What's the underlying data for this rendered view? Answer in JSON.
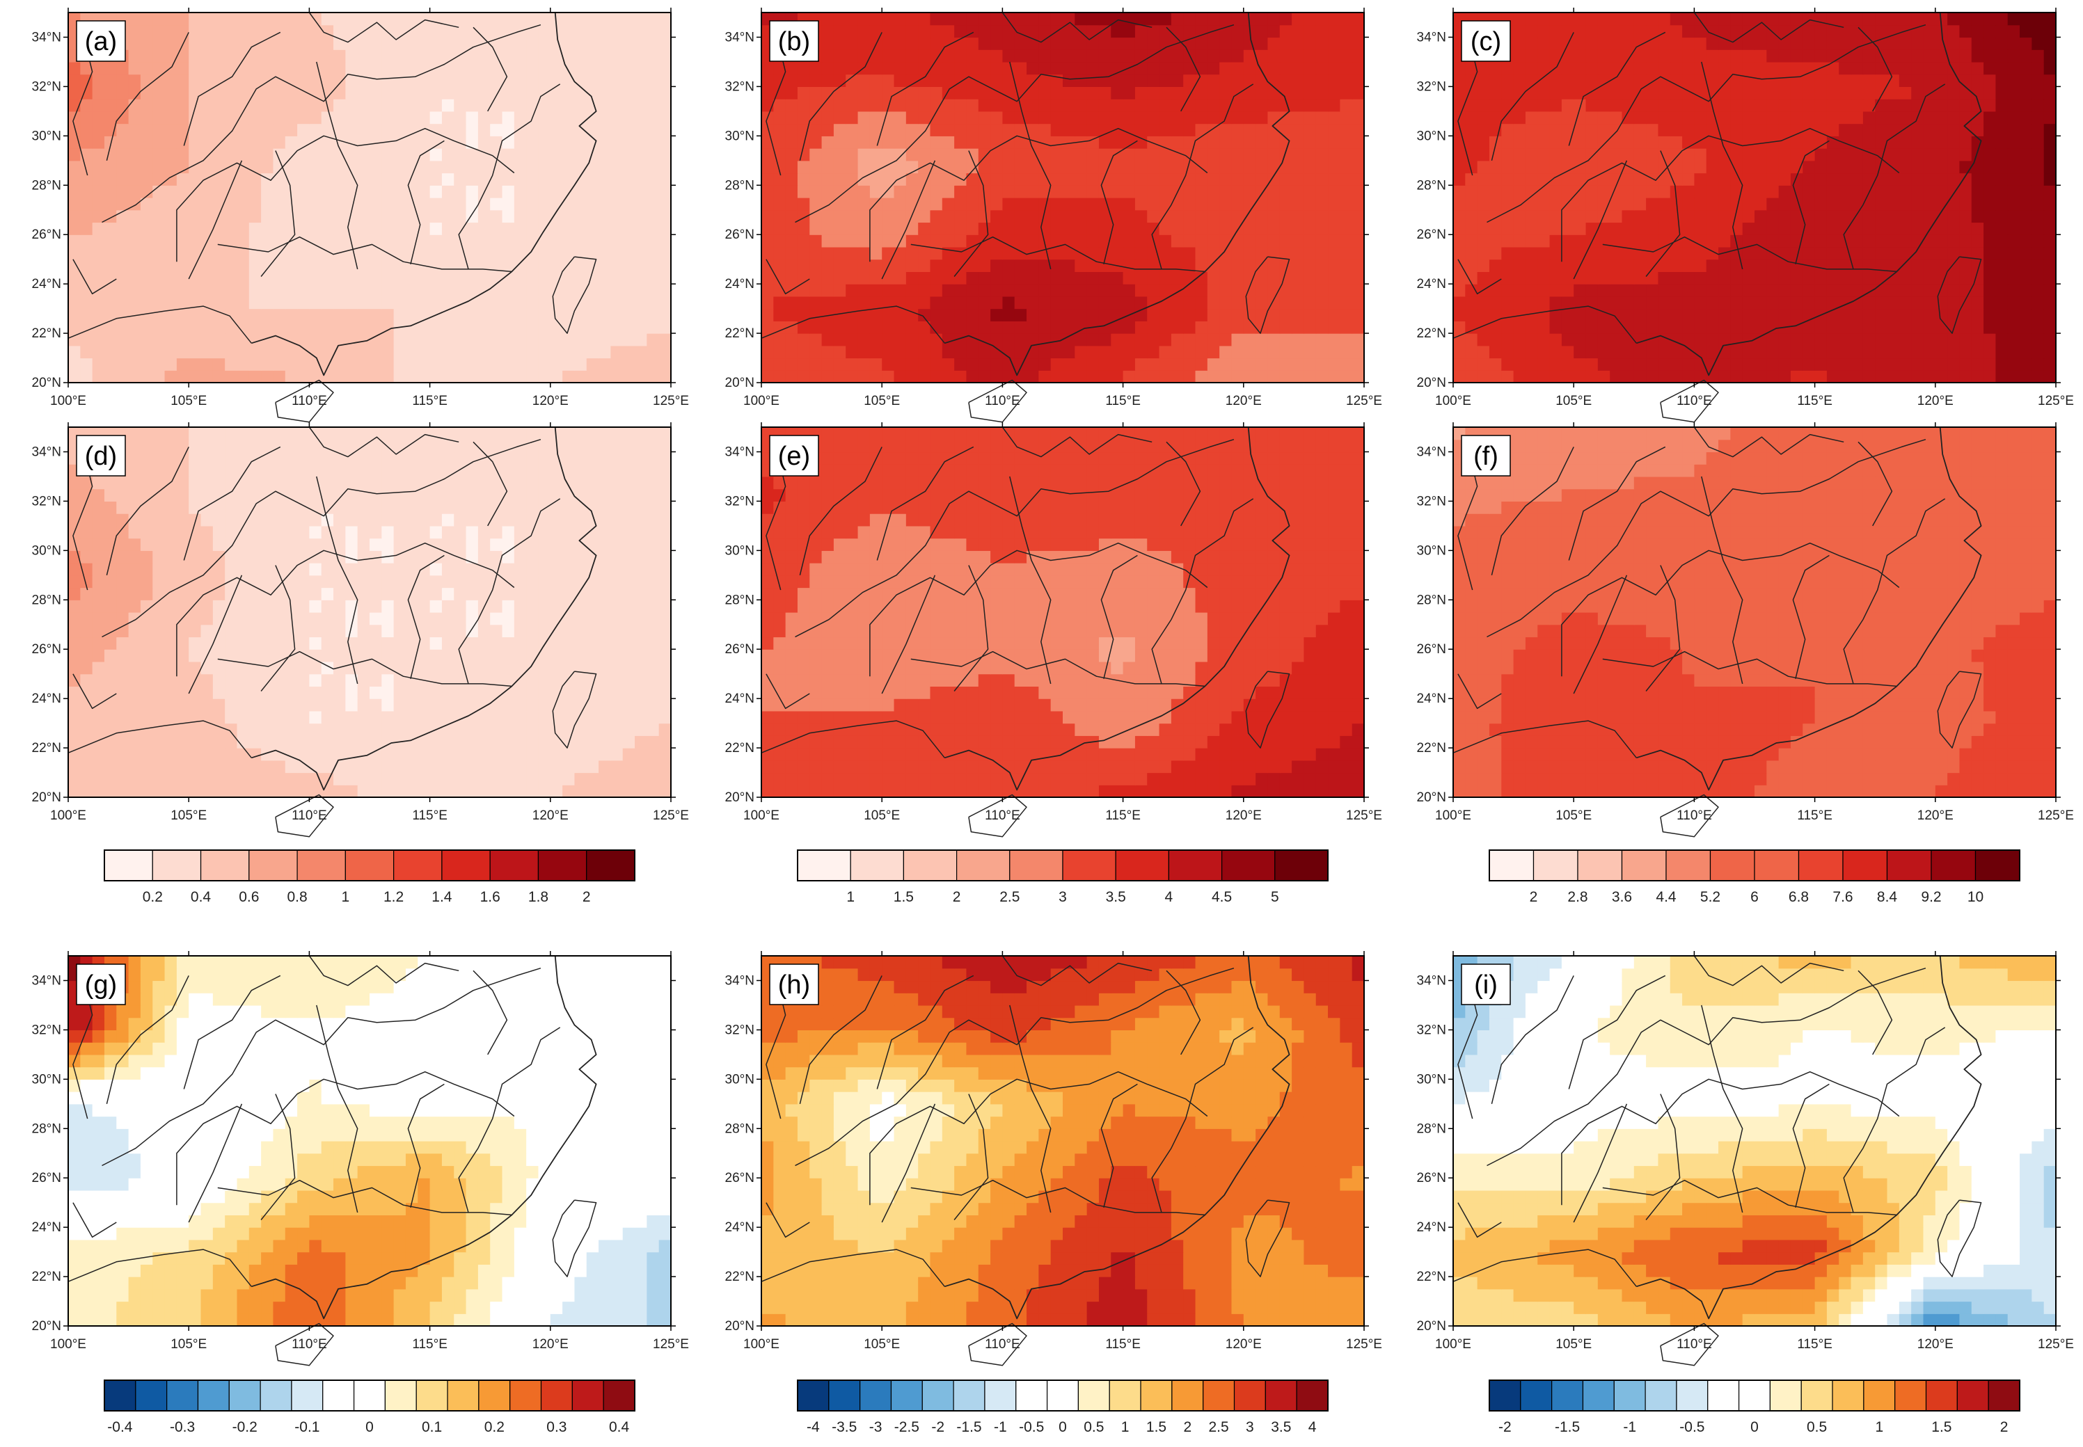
{
  "figure": {
    "title": "",
    "lat_ticks": [
      "34°N",
      "32°N",
      "30°N",
      "28°N",
      "26°N",
      "24°N",
      "22°N",
      "20°N"
    ],
    "lon_ticks": [
      "100°E",
      "105°E",
      "110°E",
      "115°E",
      "120°E",
      "125°E"
    ],
    "lat_range": [
      20,
      35
    ],
    "lon_range": [
      100,
      125
    ]
  },
  "colormaps": {
    "reds": [
      "#fff2ee",
      "#fddcd1",
      "#fcc4b2",
      "#f8a68d",
      "#f4876b",
      "#ef6548",
      "#e8432f",
      "#d9261d",
      "#bd1519",
      "#96060f",
      "#6d0008"
    ],
    "diverging": [
      "#073a7c",
      "#0f5aa3",
      "#2b7bbd",
      "#4f9bd1",
      "#7fbbe0",
      "#aed4ec",
      "#d6e9f5",
      "#ffffff",
      "#ffffff",
      "#fff2c6",
      "#fddc8b",
      "#fbbe58",
      "#f79a35",
      "#ee6c24",
      "#dc3b1d",
      "#be1a1a",
      "#8f0c12"
    ]
  },
  "chart_data": [
    {
      "type": "heatmap",
      "id": "a",
      "label": "(a)",
      "row": 0,
      "col": 0,
      "colormap": "reds",
      "xlim": [
        100,
        125
      ],
      "ylim": [
        20,
        35
      ],
      "colorbar": {
        "levels": [
          "0.2",
          "0.4",
          "0.6",
          "0.8",
          "1",
          "1.2",
          "1.4",
          "1.6",
          "1.8",
          "2"
        ],
        "bins": 11
      },
      "grid_lon": [
        100,
        105,
        110,
        115,
        120,
        125
      ],
      "grid_lat": [
        20,
        23,
        26,
        29,
        32,
        35
      ],
      "values": [
        [
          0.3,
          0.7,
          0.6,
          0.3,
          0.4,
          0.6
        ],
        [
          0.5,
          0.4,
          0.4,
          0.4,
          0.2,
          0.3
        ],
        [
          0.6,
          0.5,
          0.3,
          0.2,
          0.2,
          0.3
        ],
        [
          0.8,
          0.6,
          0.3,
          0.2,
          0.2,
          0.4
        ],
        [
          1.1,
          0.6,
          0.5,
          0.2,
          0.2,
          0.3
        ],
        [
          0.8,
          0.6,
          0.4,
          0.3,
          0.3,
          0.4
        ]
      ]
    },
    {
      "type": "heatmap",
      "id": "b",
      "label": "(b)",
      "row": 0,
      "col": 1,
      "colormap": "reds",
      "xlim": [
        100,
        125
      ],
      "ylim": [
        20,
        35
      ],
      "colorbar": {
        "levels": [
          "1",
          "1.5",
          "2",
          "2.5",
          "3",
          "3.5",
          "4",
          "4.5",
          "5"
        ],
        "bins": 10
      },
      "grid_lon": [
        100,
        105,
        110,
        115,
        120,
        125
      ],
      "grid_lat": [
        20,
        23,
        26,
        29,
        32,
        35
      ],
      "values": [
        [
          3.2,
          3.4,
          4.2,
          3.4,
          2.6,
          3.0
        ],
        [
          3.5,
          3.8,
          4.6,
          4.3,
          3.2,
          3.0
        ],
        [
          3.2,
          2.7,
          3.8,
          3.6,
          3.3,
          3.2
        ],
        [
          3.4,
          2.2,
          3.1,
          3.4,
          3.1,
          3.4
        ],
        [
          3.6,
          3.4,
          3.8,
          4.1,
          3.8,
          3.5
        ],
        [
          4.1,
          3.9,
          4.3,
          4.7,
          4.3,
          3.7
        ]
      ]
    },
    {
      "type": "heatmap",
      "id": "c",
      "label": "(c)",
      "row": 0,
      "col": 2,
      "colormap": "reds",
      "xlim": [
        100,
        125
      ],
      "ylim": [
        20,
        35
      ],
      "colorbar": {
        "levels": [
          "2",
          "2.8",
          "3.6",
          "4.4",
          "5.2",
          "6",
          "6.8",
          "7.6",
          "8.4",
          "9.2",
          "10"
        ],
        "bins": 12
      },
      "grid_lon": [
        100,
        105,
        110,
        115,
        120,
        125
      ],
      "grid_lat": [
        20,
        23,
        26,
        29,
        32,
        35
      ],
      "values": [
        [
          7.0,
          8.2,
          8.7,
          8.3,
          8.8,
          9.6
        ],
        [
          7.6,
          8.7,
          8.8,
          8.7,
          8.9,
          9.6
        ],
        [
          7.3,
          7.6,
          8.0,
          9.2,
          8.8,
          9.8
        ],
        [
          7.8,
          6.9,
          7.5,
          8.4,
          8.9,
          10.2
        ],
        [
          7.9,
          7.8,
          8.1,
          8.2,
          8.4,
          9.9
        ],
        [
          8.3,
          7.7,
          8.6,
          8.8,
          9.1,
          10.6
        ]
      ]
    },
    {
      "type": "heatmap",
      "id": "d",
      "label": "(d)",
      "row": 1,
      "col": 0,
      "colormap": "reds",
      "xlim": [
        100,
        125
      ],
      "ylim": [
        20,
        35
      ],
      "grid_lon": [
        100,
        105,
        110,
        115,
        120,
        125
      ],
      "grid_lat": [
        20,
        23,
        26,
        29,
        32,
        35
      ],
      "values": [
        [
          0.4,
          0.5,
          0.5,
          0.3,
          0.4,
          0.5
        ],
        [
          0.5,
          0.5,
          0.2,
          0.2,
          0.3,
          0.4
        ],
        [
          0.7,
          0.4,
          0.2,
          0.2,
          0.2,
          0.4
        ],
        [
          0.9,
          0.5,
          0.2,
          0.2,
          0.2,
          0.4
        ],
        [
          0.7,
          0.4,
          0.2,
          0.2,
          0.2,
          0.3
        ],
        [
          0.5,
          0.4,
          0.3,
          0.3,
          0.3,
          0.4
        ]
      ]
    },
    {
      "type": "heatmap",
      "id": "e",
      "label": "(e)",
      "row": 1,
      "col": 1,
      "colormap": "reds",
      "xlim": [
        100,
        125
      ],
      "ylim": [
        20,
        35
      ],
      "grid_lon": [
        100,
        105,
        110,
        115,
        120,
        125
      ],
      "grid_lat": [
        20,
        23,
        26,
        29,
        32,
        35
      ],
      "values": [
        [
          3.0,
          3.1,
          3.4,
          3.6,
          4.1,
          4.3
        ],
        [
          3.0,
          3.1,
          3.4,
          2.7,
          3.6,
          4.0
        ],
        [
          3.0,
          2.6,
          2.8,
          2.4,
          3.2,
          3.8
        ],
        [
          3.3,
          2.5,
          2.9,
          2.8,
          3.2,
          3.4
        ],
        [
          3.6,
          3.1,
          3.4,
          3.2,
          3.1,
          3.4
        ],
        [
          3.4,
          3.3,
          3.3,
          3.0,
          3.2,
          3.4
        ]
      ]
    },
    {
      "type": "heatmap",
      "id": "f",
      "label": "(f)",
      "row": 1,
      "col": 2,
      "colormap": "reds",
      "xlim": [
        100,
        125
      ],
      "ylim": [
        20,
        35
      ],
      "grid_lon": [
        100,
        105,
        110,
        115,
        120,
        125
      ],
      "grid_lat": [
        20,
        23,
        26,
        29,
        32,
        35
      ],
      "values": [
        [
          6.4,
          7.3,
          6.9,
          6.7,
          6.8,
          7.4
        ],
        [
          6.6,
          7.2,
          6.9,
          6.8,
          6.6,
          7.0
        ],
        [
          6.3,
          7.3,
          6.7,
          6.8,
          6.6,
          7.2
        ],
        [
          5.7,
          6.3,
          6.3,
          6.7,
          6.4,
          6.6
        ],
        [
          5.0,
          5.3,
          5.4,
          6.1,
          6.4,
          6.6
        ],
        [
          4.3,
          4.6,
          4.9,
          5.8,
          5.9,
          6.4
        ]
      ]
    },
    {
      "type": "heatmap",
      "id": "g",
      "label": "(g)",
      "row": 2,
      "col": 0,
      "colormap": "diverging",
      "xlim": [
        100,
        125
      ],
      "ylim": [
        20,
        35
      ],
      "colorbar": {
        "levels": [
          "-0.4",
          "-0.3",
          "-0.2",
          "-0.1",
          "0",
          "0.1",
          "0.2",
          "0.3",
          "0.4"
        ],
        "bins": 17
      },
      "grid_lon": [
        100,
        105,
        110,
        115,
        120,
        125
      ],
      "grid_lat": [
        20,
        23,
        26,
        29,
        32,
        35
      ],
      "values": [
        [
          0.05,
          0.12,
          0.28,
          0.12,
          -0.08,
          -0.14
        ],
        [
          0.05,
          0.08,
          0.24,
          0.18,
          -0.04,
          -0.14
        ],
        [
          -0.12,
          -0.05,
          0.1,
          0.18,
          0.0,
          -0.02
        ],
        [
          -0.08,
          -0.05,
          0.03,
          0.0,
          0.02,
          -0.02
        ],
        [
          0.38,
          0.0,
          0.02,
          0.0,
          0.0,
          -0.03
        ],
        [
          0.4,
          0.05,
          0.08,
          0.02,
          0.0,
          -0.03
        ]
      ]
    },
    {
      "type": "heatmap",
      "id": "h",
      "label": "(h)",
      "row": 2,
      "col": 1,
      "colormap": "diverging",
      "xlim": [
        100,
        125
      ],
      "ylim": [
        20,
        35
      ],
      "colorbar": {
        "levels": [
          "-4",
          "-3.5",
          "-3",
          "-2.5",
          "-2",
          "-1.5",
          "-1",
          "-0.5",
          "0",
          "0.5",
          "1",
          "1.5",
          "2",
          "2.5",
          "3",
          "3.5",
          "4"
        ],
        "bins": 17
      },
      "grid_lon": [
        100,
        105,
        110,
        115,
        120,
        125
      ],
      "grid_lat": [
        20,
        23,
        26,
        29,
        32,
        35
      ],
      "values": [
        [
          1.8,
          1.6,
          2.6,
          3.6,
          2.2,
          2.0
        ],
        [
          1.6,
          1.2,
          2.4,
          3.3,
          2.1,
          2.4
        ],
        [
          2.0,
          0.4,
          1.8,
          2.9,
          2.4,
          2.2
        ],
        [
          1.6,
          0.0,
          1.2,
          2.2,
          2.1,
          2.6
        ],
        [
          2.4,
          2.2,
          3.0,
          2.2,
          1.6,
          3.0
        ],
        [
          2.6,
          3.0,
          3.6,
          3.2,
          2.6,
          3.4
        ]
      ]
    },
    {
      "type": "heatmap",
      "id": "i",
      "label": "(i)",
      "row": 2,
      "col": 2,
      "colormap": "diverging",
      "xlim": [
        100,
        125
      ],
      "ylim": [
        20,
        35
      ],
      "colorbar": {
        "levels": [
          "-2",
          "-1.5",
          "-1",
          "-0.5",
          "0",
          "0.5",
          "1",
          "1.5",
          "2"
        ],
        "bins": 17
      },
      "grid_lon": [
        100,
        105,
        110,
        115,
        120,
        125
      ],
      "grid_lat": [
        20,
        23,
        26,
        29,
        32,
        35
      ],
      "values": [
        [
          0.4,
          0.5,
          0.9,
          0.7,
          -1.4,
          -0.6
        ],
        [
          0.7,
          1.0,
          1.4,
          1.5,
          0.2,
          -0.6
        ],
        [
          0.3,
          0.2,
          0.6,
          0.8,
          0.5,
          -0.8
        ],
        [
          -0.4,
          0.0,
          0.0,
          0.1,
          0.0,
          -0.2
        ],
        [
          -0.9,
          0.1,
          0.3,
          0.1,
          0.2,
          0.1
        ],
        [
          -1.0,
          -0.3,
          0.6,
          0.7,
          0.6,
          0.9
        ]
      ]
    }
  ]
}
